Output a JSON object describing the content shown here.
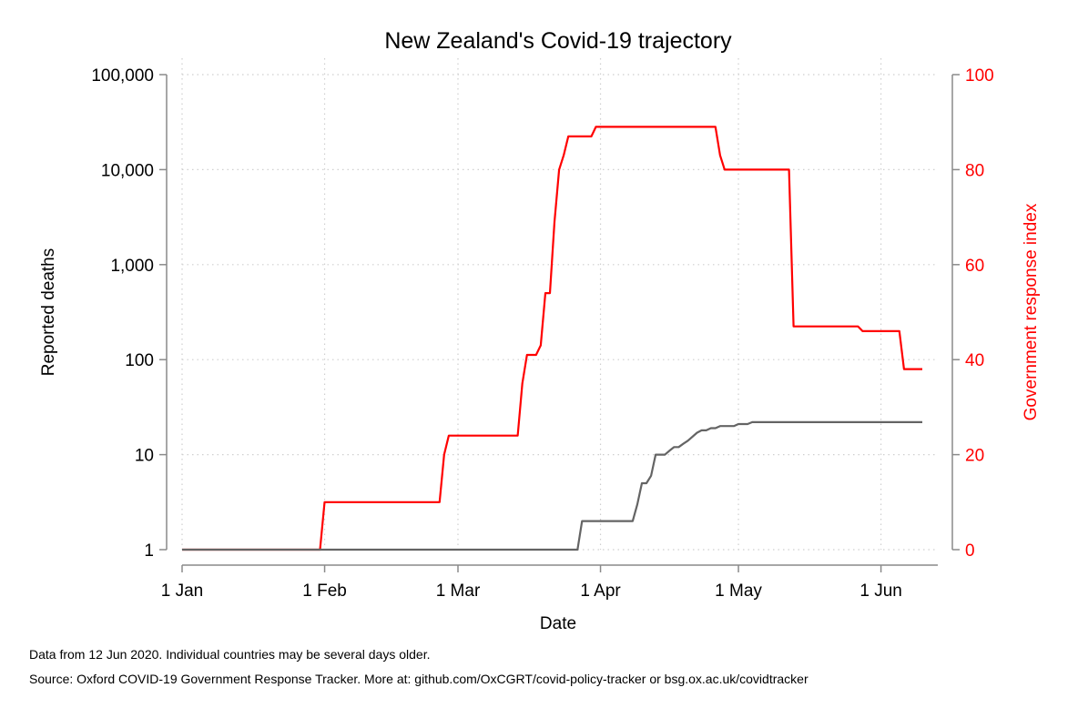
{
  "chart_data": {
    "type": "line",
    "title": "New Zealand's Covid-19 trajectory",
    "xlabel": "Date",
    "x_ticks": [
      "1 Jan",
      "1 Feb",
      "1 Mar",
      "1 Apr",
      "1 May",
      "1 Jun"
    ],
    "x_tick_days": [
      0,
      31,
      60,
      91,
      121,
      152
    ],
    "left_axis": {
      "label": "Reported deaths",
      "scale": "log",
      "range": [
        1,
        100000
      ],
      "ticks": [
        1,
        10,
        100,
        1000,
        10000,
        100000
      ],
      "tick_labels": [
        "1",
        "10",
        "100",
        "1,000",
        "10,000",
        "100,000"
      ]
    },
    "right_axis": {
      "label": "Government response index",
      "range": [
        0,
        100
      ],
      "ticks": [
        0,
        20,
        40,
        60,
        80,
        100
      ],
      "tick_labels": [
        "0",
        "20",
        "40",
        "60",
        "80",
        "100"
      ]
    },
    "grid": true,
    "series": [
      {
        "axis": "right",
        "color": "#ff0000",
        "points": [
          [
            "2020-01-01",
            0
          ],
          [
            "2020-01-31",
            0
          ],
          [
            "2020-02-01",
            10
          ],
          [
            "2020-02-26",
            10
          ],
          [
            "2020-02-27",
            20
          ],
          [
            "2020-02-28",
            24
          ],
          [
            "2020-03-14",
            24
          ],
          [
            "2020-03-15",
            35
          ],
          [
            "2020-03-16",
            41
          ],
          [
            "2020-03-18",
            41
          ],
          [
            "2020-03-19",
            43
          ],
          [
            "2020-03-20",
            54
          ],
          [
            "2020-03-21",
            54
          ],
          [
            "2020-03-22",
            69
          ],
          [
            "2020-03-23",
            80
          ],
          [
            "2020-03-24",
            83
          ],
          [
            "2020-03-25",
            87
          ],
          [
            "2020-03-30",
            87
          ],
          [
            "2020-03-31",
            89
          ],
          [
            "2020-04-26",
            89
          ],
          [
            "2020-04-27",
            83
          ],
          [
            "2020-04-28",
            80
          ],
          [
            "2020-05-12",
            80
          ],
          [
            "2020-05-13",
            47
          ],
          [
            "2020-05-27",
            47
          ],
          [
            "2020-05-28",
            46
          ],
          [
            "2020-06-05",
            46
          ],
          [
            "2020-06-06",
            38
          ],
          [
            "2020-06-10",
            38
          ]
        ]
      },
      {
        "axis": "left",
        "color": "#646464",
        "points": [
          [
            "2020-01-01",
            1
          ],
          [
            "2020-03-27",
            1
          ],
          [
            "2020-03-28",
            2
          ],
          [
            "2020-04-08",
            2
          ],
          [
            "2020-04-09",
            3
          ],
          [
            "2020-04-10",
            5
          ],
          [
            "2020-04-11",
            5
          ],
          [
            "2020-04-12",
            6
          ],
          [
            "2020-04-13",
            10
          ],
          [
            "2020-04-15",
            10
          ],
          [
            "2020-04-16",
            11
          ],
          [
            "2020-04-17",
            12
          ],
          [
            "2020-04-18",
            12
          ],
          [
            "2020-04-19",
            13
          ],
          [
            "2020-04-20",
            14
          ],
          [
            "2020-04-22",
            17
          ],
          [
            "2020-04-23",
            18
          ],
          [
            "2020-04-24",
            18
          ],
          [
            "2020-04-25",
            19
          ],
          [
            "2020-04-26",
            19
          ],
          [
            "2020-04-27",
            20
          ],
          [
            "2020-04-30",
            20
          ],
          [
            "2020-05-01",
            21
          ],
          [
            "2020-05-03",
            21
          ],
          [
            "2020-05-04",
            22
          ],
          [
            "2020-05-05",
            22
          ],
          [
            "2020-05-06",
            22
          ],
          [
            "2020-05-07",
            22
          ],
          [
            "2020-05-28",
            22
          ],
          [
            "2020-05-29",
            22
          ],
          [
            "2020-06-10",
            22
          ]
        ]
      }
    ]
  },
  "footnotes": {
    "line1": "Data from 12 Jun 2020. Individual countries may be several days older.",
    "line2": "Source: Oxford COVID-19 Government Response Tracker. More at: github.com/OxCGRT/covid-policy-tracker or bsg.ox.ac.uk/covidtracker"
  }
}
